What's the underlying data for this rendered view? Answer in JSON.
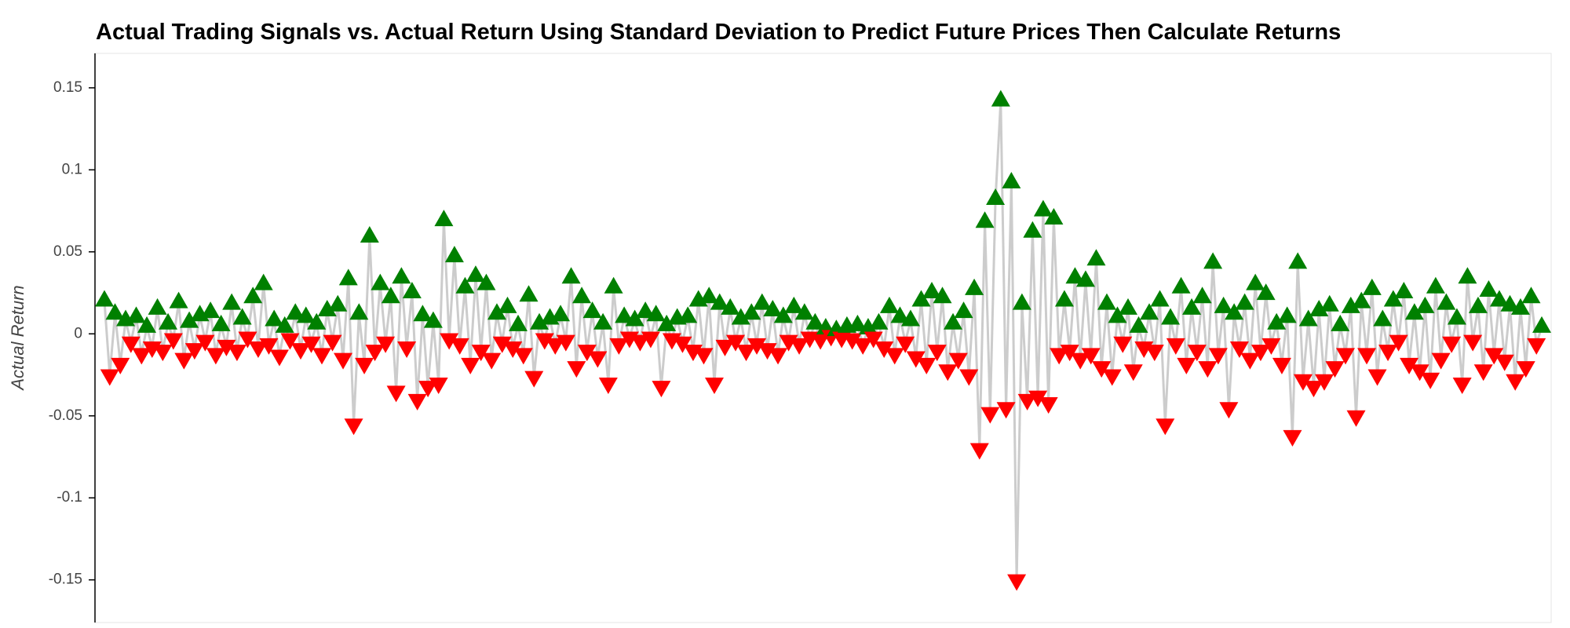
{
  "chart_data": {
    "type": "line",
    "title": "Actual Trading Signals vs. Actual Return Using Standard Deviation to Predict Future Prices Then Calculate Returns",
    "y_label": "Actual Return",
    "ylim": [
      -0.176,
      0.171
    ],
    "yticks": [
      -0.15,
      -0.1,
      -0.05,
      0,
      0.05,
      0.1,
      0.15
    ],
    "line_color": "#cccccc",
    "up_color": "#008000",
    "down_color": "#ff0000",
    "values": [
      0.02,
      -0.025,
      0.012,
      -0.018,
      0.008,
      -0.005,
      0.01,
      -0.012,
      0.004,
      -0.008,
      0.015,
      -0.01,
      0.006,
      -0.003,
      0.019,
      -0.015,
      0.007,
      -0.009,
      0.011,
      -0.004,
      0.013,
      -0.012,
      0.005,
      -0.007,
      0.018,
      -0.01,
      0.009,
      -0.002,
      0.022,
      -0.008,
      0.03,
      -0.006,
      0.008,
      -0.013,
      0.004,
      -0.003,
      0.012,
      -0.009,
      0.01,
      -0.005,
      0.006,
      -0.012,
      0.014,
      -0.004,
      0.017,
      -0.015,
      0.033,
      -0.055,
      0.012,
      -0.018,
      0.059,
      -0.01,
      0.03,
      -0.005,
      0.022,
      -0.035,
      0.034,
      -0.008,
      0.025,
      -0.04,
      0.011,
      -0.032,
      0.007,
      -0.03,
      0.069,
      -0.003,
      0.047,
      -0.006,
      0.028,
      -0.018,
      0.035,
      -0.01,
      0.03,
      -0.015,
      0.012,
      -0.005,
      0.016,
      -0.008,
      0.005,
      -0.012,
      0.023,
      -0.026,
      0.006,
      -0.003,
      0.009,
      -0.006,
      0.011,
      -0.004,
      0.034,
      -0.02,
      0.022,
      -0.01,
      0.013,
      -0.014,
      0.006,
      -0.03,
      0.028,
      -0.006,
      0.01,
      -0.002,
      0.008,
      -0.004,
      0.013,
      -0.002,
      0.011,
      -0.032,
      0.005,
      -0.003,
      0.009,
      -0.005,
      0.01,
      -0.01,
      0.02,
      -0.012,
      0.022,
      -0.03,
      0.018,
      -0.007,
      0.015,
      -0.004,
      0.009,
      -0.01,
      0.012,
      -0.006,
      0.018,
      -0.009,
      0.014,
      -0.012,
      0.01,
      -0.004,
      0.016,
      -0.006,
      0.012,
      -0.002,
      0.006,
      -0.003,
      0.003,
      -0.001,
      0.002,
      -0.002,
      0.004,
      -0.003,
      0.005,
      -0.006,
      0.003,
      -0.002,
      0.006,
      -0.008,
      0.016,
      -0.012,
      0.01,
      -0.005,
      0.008,
      -0.014,
      0.02,
      -0.018,
      0.025,
      -0.01,
      0.022,
      -0.022,
      0.006,
      -0.015,
      0.013,
      -0.025,
      0.027,
      -0.07,
      0.068,
      -0.048,
      0.082,
      0.142,
      -0.045,
      0.092,
      -0.15,
      0.018,
      -0.04,
      0.062,
      -0.038,
      0.075,
      -0.042,
      0.07,
      -0.012,
      0.02,
      -0.01,
      0.034,
      -0.015,
      0.032,
      -0.012,
      0.045,
      -0.02,
      0.018,
      -0.025,
      0.01,
      -0.005,
      0.015,
      -0.022,
      0.004,
      -0.008,
      0.012,
      -0.01,
      0.02,
      -0.055,
      0.009,
      -0.006,
      0.028,
      -0.018,
      0.015,
      -0.01,
      0.022,
      -0.02,
      0.043,
      -0.012,
      0.016,
      -0.045,
      0.012,
      -0.008,
      0.018,
      -0.015,
      0.03,
      -0.01,
      0.024,
      -0.006,
      0.006,
      -0.018,
      0.01,
      -0.062,
      0.043,
      -0.028,
      0.008,
      -0.032,
      0.014,
      -0.028,
      0.017,
      -0.02,
      0.005,
      -0.012,
      0.016,
      -0.05,
      0.019,
      -0.012,
      0.027,
      -0.025,
      0.008,
      -0.01,
      0.02,
      -0.004,
      0.025,
      -0.018,
      0.012,
      -0.022,
      0.016,
      -0.027,
      0.028,
      -0.015,
      0.018,
      -0.005,
      0.009,
      -0.03,
      0.034,
      -0.004,
      0.016,
      -0.022,
      0.026,
      -0.012,
      0.02,
      -0.016,
      0.017,
      -0.028,
      0.015,
      -0.02,
      0.022,
      -0.006,
      0.004
    ]
  }
}
